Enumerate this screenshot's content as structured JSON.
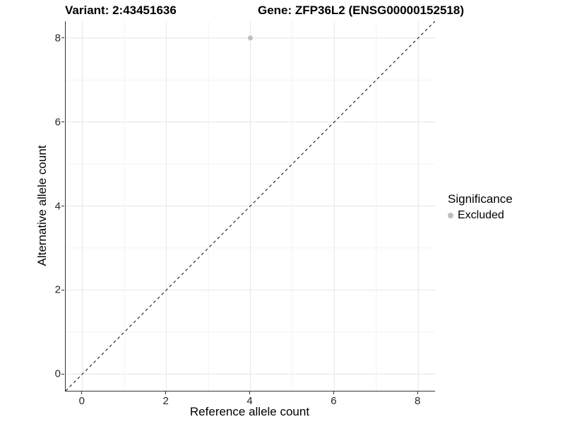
{
  "titles": {
    "variant": "Variant: 2:43451636",
    "gene": "Gene: ZFP36L2 (ENSG00000152518)"
  },
  "chart_data": {
    "type": "scatter",
    "xlabel": "Reference allele count",
    "ylabel": "Alternative allele count",
    "xlim": [
      -0.4,
      8.4
    ],
    "ylim": [
      -0.4,
      8.4
    ],
    "x_ticks": [
      0,
      2,
      4,
      6,
      8
    ],
    "y_ticks": [
      0,
      2,
      4,
      6,
      8
    ],
    "x_minor_ticks": [
      1,
      3,
      5,
      7
    ],
    "y_minor_ticks": [
      1,
      3,
      5,
      7
    ],
    "grid": true,
    "points": [
      {
        "x": 4,
        "y": 8,
        "series": "Excluded"
      }
    ],
    "reference_line": {
      "slope": 1,
      "intercept": 0,
      "style": "dashed"
    },
    "legend": {
      "title": "Significance",
      "position": "right",
      "entries": [
        {
          "label": "Excluded",
          "color": "#bebebe"
        }
      ]
    }
  },
  "colors": {
    "background": "#ffffff",
    "point": "#bebebe",
    "axis_line": "#333333",
    "tick_text": "#262626",
    "grid_major": "#e6e6e6",
    "grid_minor": "#f2f2f2",
    "reference_line": "#000000"
  }
}
